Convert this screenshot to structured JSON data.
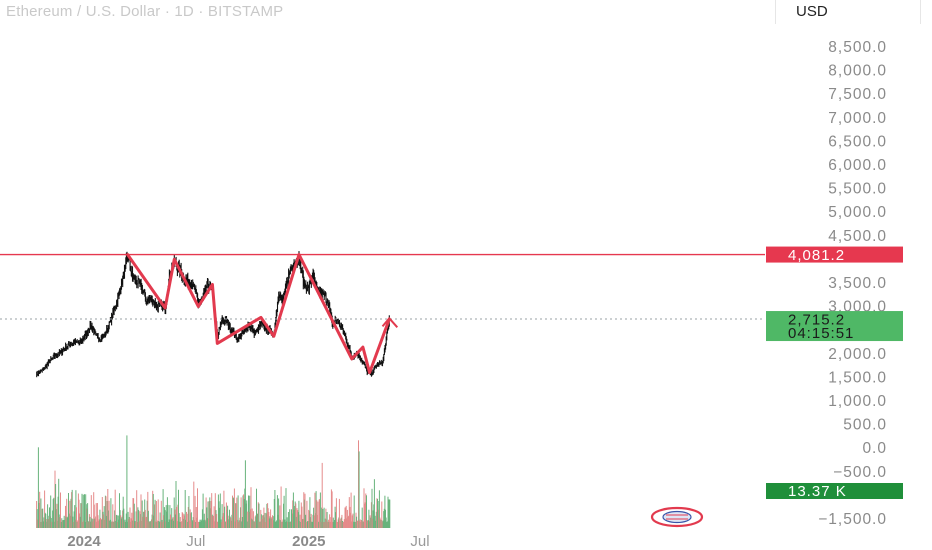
{
  "header": {
    "title": "Ethereum / U.S. Dollar · 1D · BITSTAMP",
    "currency": "USD"
  },
  "colors": {
    "resistance": "#e6384f",
    "pattern": "#e23a4e",
    "price_badge_bg": "#4fb866",
    "volume_badge_bg": "#1f8f3a",
    "volume_up": "#68b37c",
    "volume_down": "#e58b8b",
    "candles": "#111111"
  },
  "chart_data": {
    "type": "line",
    "title": "Ethereum / U.S. Dollar · 1D · BITSTAMP",
    "ylabel": "USD",
    "ylim": [
      -1600,
      9100
    ],
    "y_ticks": [
      8500,
      8000,
      7500,
      7000,
      6500,
      6000,
      5500,
      5000,
      4500,
      3500,
      3000,
      2000,
      1500,
      1000,
      500,
      0,
      -500,
      -1500
    ],
    "y_tick_labels": [
      "8,500.0",
      "8,000.0",
      "7,500.0",
      "7,000.0",
      "6,500.0",
      "6,000.0",
      "5,500.0",
      "5,000.0",
      "4,500.0",
      "3,500.0",
      "3,000.0",
      "2,000.0",
      "1,500.0",
      "1,000.0",
      "500.0",
      "0.0",
      "−500.0",
      "−1,500.0"
    ],
    "x_ticks": [
      {
        "label": "2024",
        "date": "2024-01-01",
        "bold": true
      },
      {
        "label": "Jul",
        "date": "2024-07-01",
        "bold": false
      },
      {
        "label": "2025",
        "date": "2025-01-01",
        "bold": true
      },
      {
        "label": "Jul",
        "date": "2025-07-01",
        "bold": false
      }
    ],
    "series": [
      {
        "points": [
          [
            "2023-10-15",
            1550
          ],
          [
            "2023-10-25",
            1620
          ],
          [
            "2023-11-05",
            1800
          ],
          [
            "2023-11-15",
            1950
          ],
          [
            "2023-11-25",
            2020
          ],
          [
            "2023-12-05",
            2150
          ],
          [
            "2023-12-15",
            2230
          ],
          [
            "2023-12-25",
            2200
          ],
          [
            "2024-01-05",
            2400
          ],
          [
            "2024-01-12",
            2600
          ],
          [
            "2024-01-20",
            2350
          ],
          [
            "2024-01-28",
            2300
          ],
          [
            "2024-02-05",
            2400
          ],
          [
            "2024-02-15",
            2750
          ],
          [
            "2024-02-25",
            3150
          ],
          [
            "2024-03-05",
            3600
          ],
          [
            "2024-03-12",
            4070
          ],
          [
            "2024-03-20",
            3600
          ],
          [
            "2024-03-28",
            3500
          ],
          [
            "2024-04-05",
            3350
          ],
          [
            "2024-04-12",
            3100
          ],
          [
            "2024-04-20",
            3150
          ],
          [
            "2024-04-28",
            3000
          ],
          [
            "2024-05-05",
            3000
          ],
          [
            "2024-05-12",
            2950
          ],
          [
            "2024-05-20",
            3700
          ],
          [
            "2024-05-27",
            3900
          ],
          [
            "2024-06-05",
            3750
          ],
          [
            "2024-06-12",
            3550
          ],
          [
            "2024-06-20",
            3500
          ],
          [
            "2024-06-28",
            3400
          ],
          [
            "2024-07-05",
            3050
          ],
          [
            "2024-07-12",
            3150
          ],
          [
            "2024-07-20",
            3450
          ],
          [
            "2024-07-28",
            3300
          ],
          [
            "2024-08-05",
            2300
          ],
          [
            "2024-08-12",
            2700
          ],
          [
            "2024-08-20",
            2650
          ],
          [
            "2024-08-28",
            2500
          ],
          [
            "2024-09-06",
            2300
          ],
          [
            "2024-09-15",
            2400
          ],
          [
            "2024-09-25",
            2600
          ],
          [
            "2024-10-05",
            2400
          ],
          [
            "2024-10-15",
            2600
          ],
          [
            "2024-10-25",
            2500
          ],
          [
            "2024-11-05",
            2400
          ],
          [
            "2024-11-12",
            3200
          ],
          [
            "2024-11-20",
            3100
          ],
          [
            "2024-11-28",
            3600
          ],
          [
            "2024-12-06",
            3900
          ],
          [
            "2024-12-16",
            4000
          ],
          [
            "2024-12-24",
            3450
          ],
          [
            "2025-01-01",
            3350
          ],
          [
            "2025-01-07",
            3650
          ],
          [
            "2025-01-15",
            3300
          ],
          [
            "2025-01-23",
            3250
          ],
          [
            "2025-02-01",
            3100
          ],
          [
            "2025-02-08",
            2600
          ],
          [
            "2025-02-15",
            2700
          ],
          [
            "2025-02-25",
            2500
          ],
          [
            "2025-03-05",
            2200
          ],
          [
            "2025-03-12",
            1900
          ],
          [
            "2025-03-20",
            2000
          ],
          [
            "2025-03-28",
            1850
          ],
          [
            "2025-04-06",
            1600
          ],
          [
            "2025-04-12",
            1550
          ],
          [
            "2025-04-22",
            1750
          ],
          [
            "2025-05-01",
            1800
          ],
          [
            "2025-05-08",
            2350
          ],
          [
            "2025-05-12",
            2715
          ]
        ]
      }
    ],
    "pattern_line": [
      [
        "2024-03-12",
        4081
      ],
      [
        "2024-05-12",
        2950
      ],
      [
        "2024-05-27",
        3980
      ],
      [
        "2024-07-05",
        2980
      ],
      [
        "2024-07-28",
        3450
      ],
      [
        "2024-08-05",
        2200
      ],
      [
        "2024-10-15",
        2750
      ],
      [
        "2024-11-05",
        2350
      ],
      [
        "2024-12-16",
        4081
      ],
      [
        "2025-03-12",
        1870
      ],
      [
        "2025-03-30",
        2120
      ],
      [
        "2025-04-10",
        1580
      ],
      [
        "2025-05-12",
        2715
      ]
    ],
    "projection_line": [
      [
        "2025-05-01",
        2560
      ],
      [
        "2025-05-12",
        2730
      ],
      [
        "2025-05-25",
        2540
      ]
    ],
    "resistance": {
      "value": 4081.2,
      "label": "4,081.2"
    },
    "last_price": {
      "value": 2715.2,
      "label": "2,715.2",
      "countdown": "04:15:51"
    },
    "volume_badge": {
      "label": "13.37 K"
    }
  }
}
